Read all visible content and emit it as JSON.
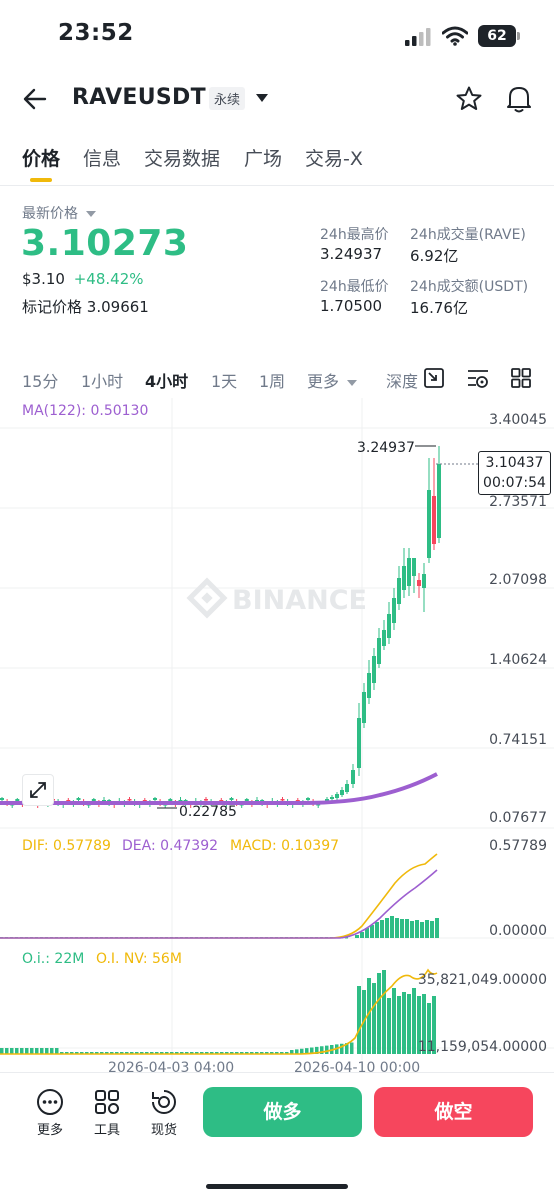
{
  "status_bar": {
    "time": "23:52",
    "battery": "62"
  },
  "header": {
    "pair": "RAVEUSDT",
    "contract_type": "永续"
  },
  "tabs": [
    "价格",
    "信息",
    "交易数据",
    "广场",
    "交易-X"
  ],
  "price": {
    "label": "最新价格",
    "last": "3.10273",
    "usd": "$3.10",
    "change": "+48.42%",
    "mark_label": "标记价格",
    "mark": "3.09661"
  },
  "stats": {
    "high_label": "24h最高价",
    "high": "3.24937",
    "vol_label": "24h成交量(RAVE)",
    "vol": "6.92亿",
    "low_label": "24h最低价",
    "low": "1.70500",
    "amount_label": "24h成交额(USDT)",
    "amount": "16.76亿"
  },
  "intervals": [
    "15分",
    "1小时",
    "4小时",
    "1天",
    "1周",
    "更多",
    "深度"
  ],
  "chart": {
    "watermark": "BINANCE",
    "ma_label": "MA(122): 0.50130",
    "y_labels": [
      "3.40045",
      "2.73571",
      "2.07098",
      "1.40624",
      "0.74151",
      "0.07677"
    ],
    "high_marker": "3.24937",
    "low_marker": "0.22785",
    "current_price": "3.10437",
    "countdown": "00:07:54",
    "macd": {
      "dif": "DIF: 0.57789",
      "dea": "DEA: 0.47392",
      "macd": "MACD: 0.10397",
      "y_top": "0.57789",
      "y_bottom": "0.00000"
    },
    "oi": {
      "oi": "O.i.: 22M",
      "oinv": "O.I. NV: 56M",
      "y_top": "35,821,049.00000",
      "y_bottom": "11,159,054.00000"
    },
    "x_labels": [
      "2026-04-03 04:00",
      "2026-04-10 00:00"
    ]
  },
  "bottom": {
    "more": "更多",
    "tools": "工具",
    "spot": "现货",
    "long": "做多",
    "short": "做空"
  },
  "colors": {
    "up": "#2ebd85",
    "down": "#f6465d",
    "accent": "#f0b90b",
    "ma": "#9d5fd0"
  }
}
